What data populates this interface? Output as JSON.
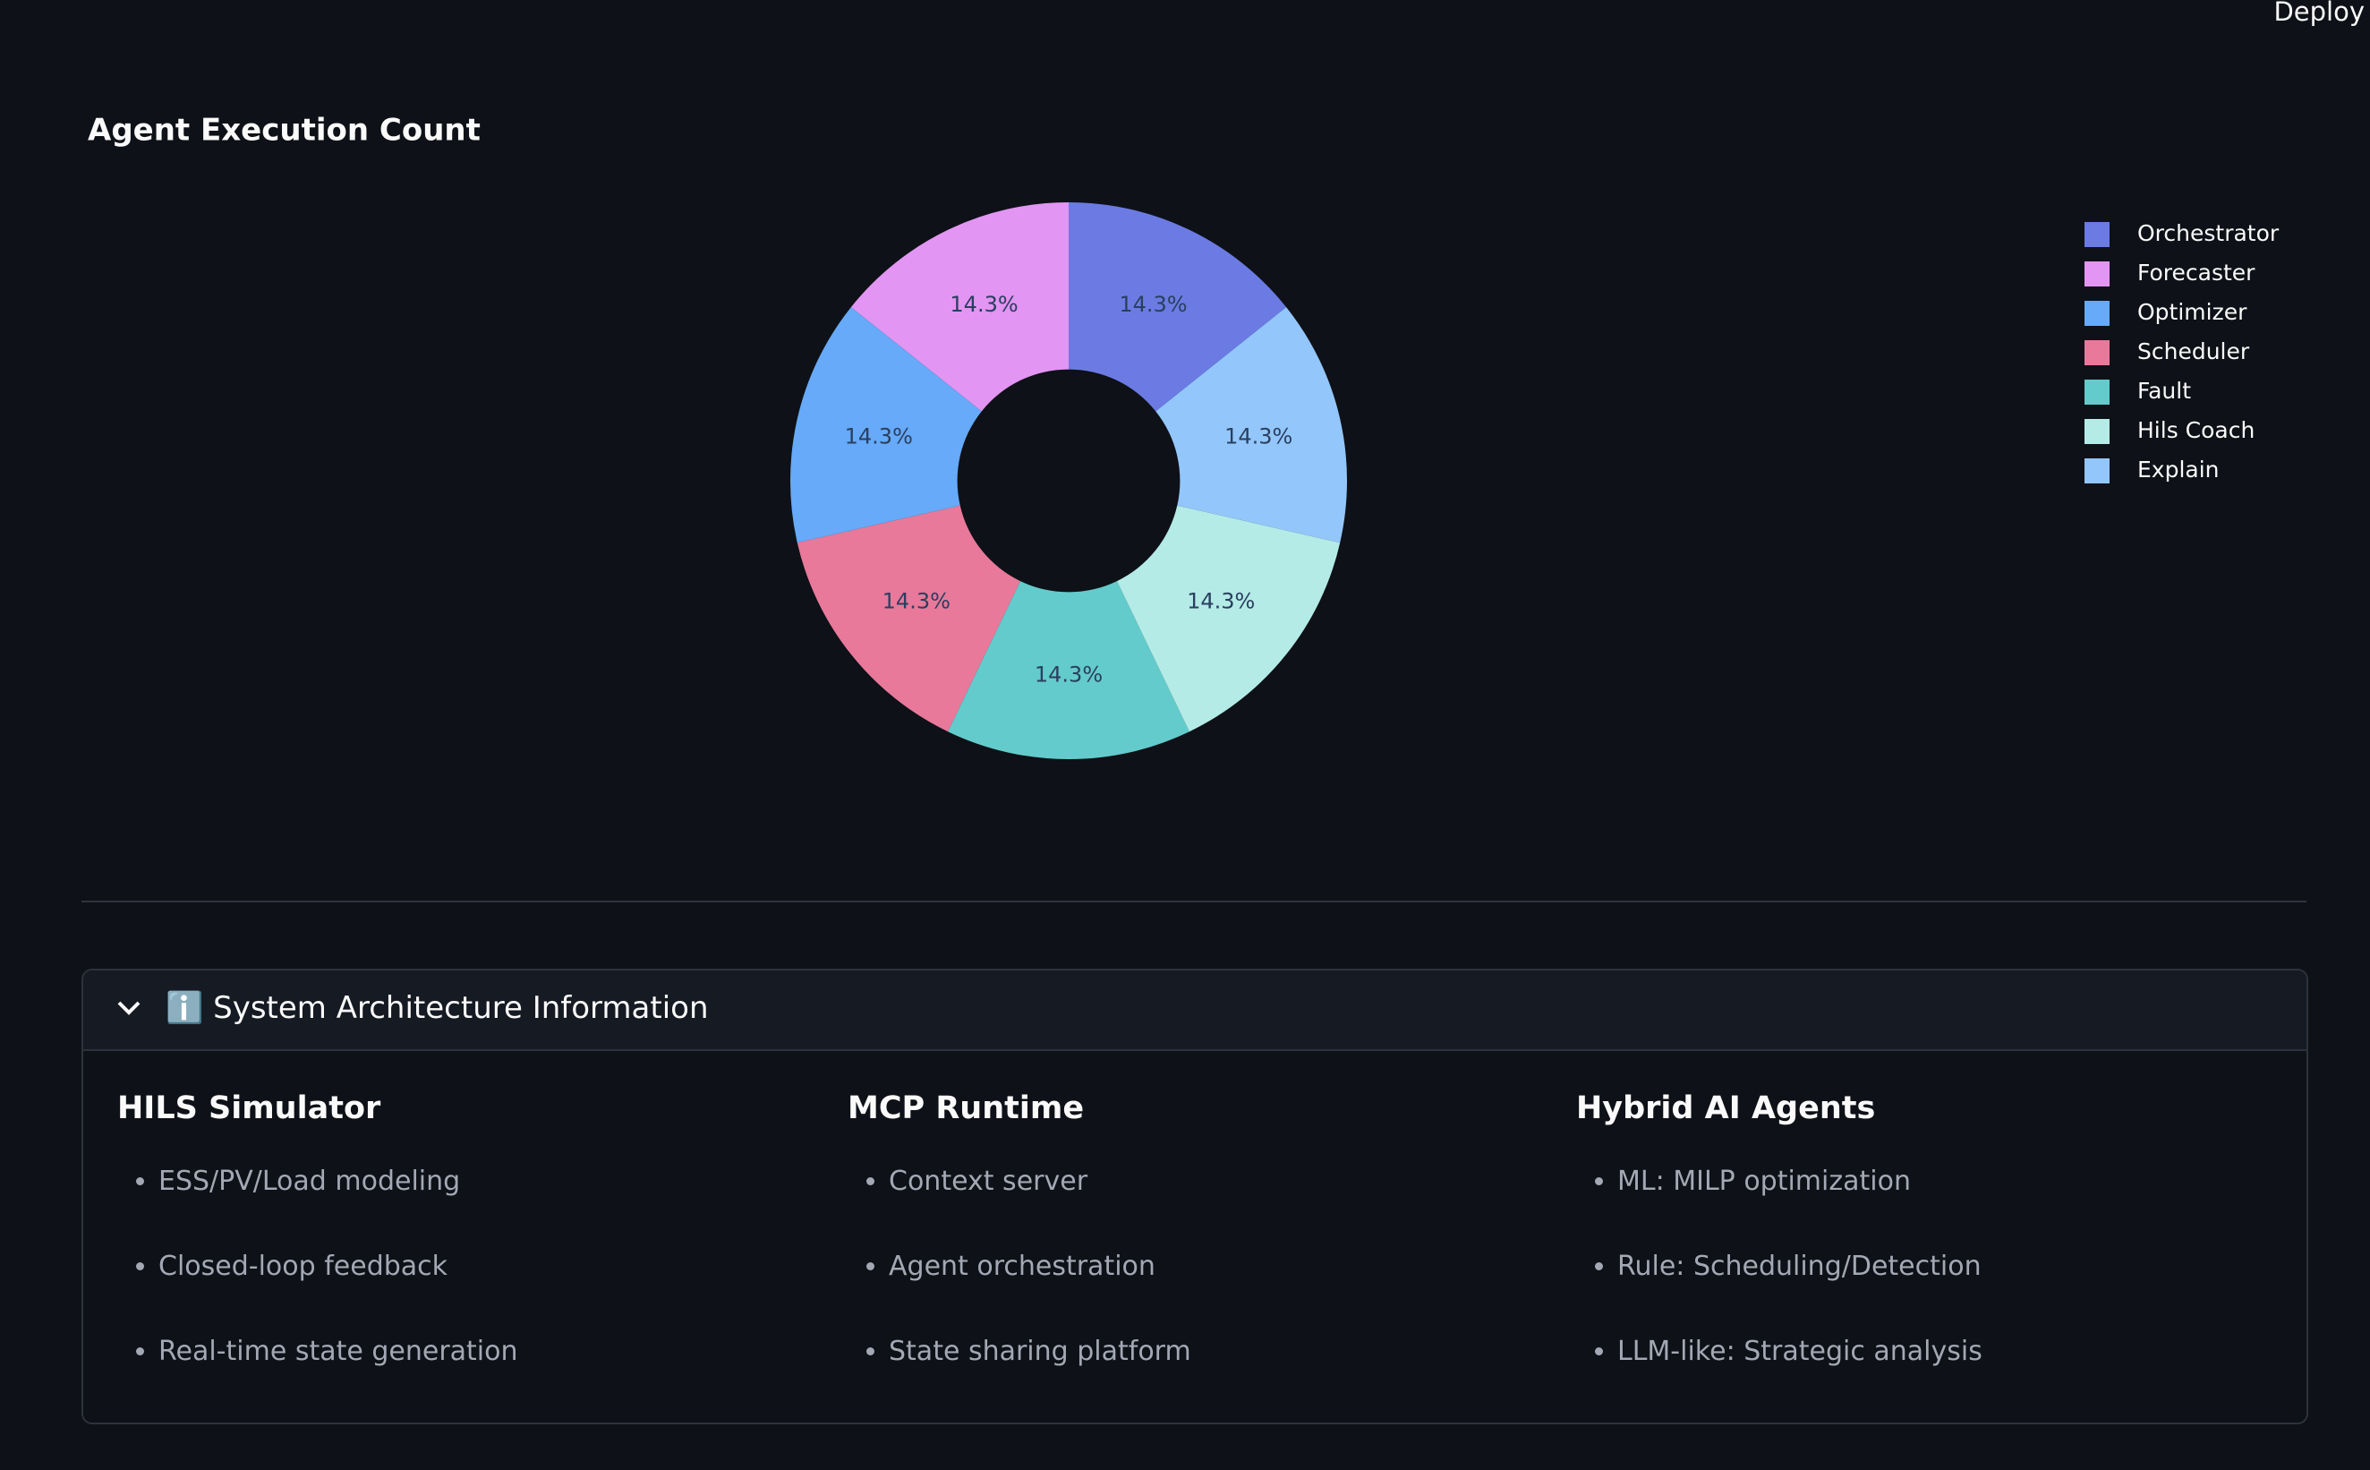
{
  "header": {
    "deploy": "Deploy"
  },
  "chart_data": {
    "type": "pie",
    "title": "Agent Execution Count",
    "categories": [
      "Orchestrator",
      "Forecaster",
      "Optimizer",
      "Scheduler",
      "Fault",
      "Hils Coach",
      "Explain"
    ],
    "values": [
      14.3,
      14.3,
      14.3,
      14.3,
      14.3,
      14.3,
      14.3
    ],
    "value_labels": [
      "14.3%",
      "14.3%",
      "14.3%",
      "14.3%",
      "14.3%",
      "14.3%",
      "14.3%"
    ],
    "colors": [
      "#6b7be3",
      "#e295f2",
      "#66aaf9",
      "#e8799a",
      "#63cbcb",
      "#b4ebe6",
      "#93c6fb"
    ],
    "hole": 0.4,
    "legend": "top-right"
  },
  "expander": {
    "title": "ℹ️ System Architecture Information",
    "columns": [
      {
        "heading": "HILS Simulator",
        "items": [
          "ESS/PV/Load modeling",
          "Closed-loop feedback",
          "Real-time state generation"
        ]
      },
      {
        "heading": "MCP Runtime",
        "items": [
          "Context server",
          "Agent orchestration",
          "State sharing platform"
        ]
      },
      {
        "heading": "Hybrid AI Agents",
        "items": [
          "ML: MILP optimization",
          "Rule: Scheduling/Detection",
          "LLM-like: Strategic analysis"
        ]
      }
    ]
  }
}
